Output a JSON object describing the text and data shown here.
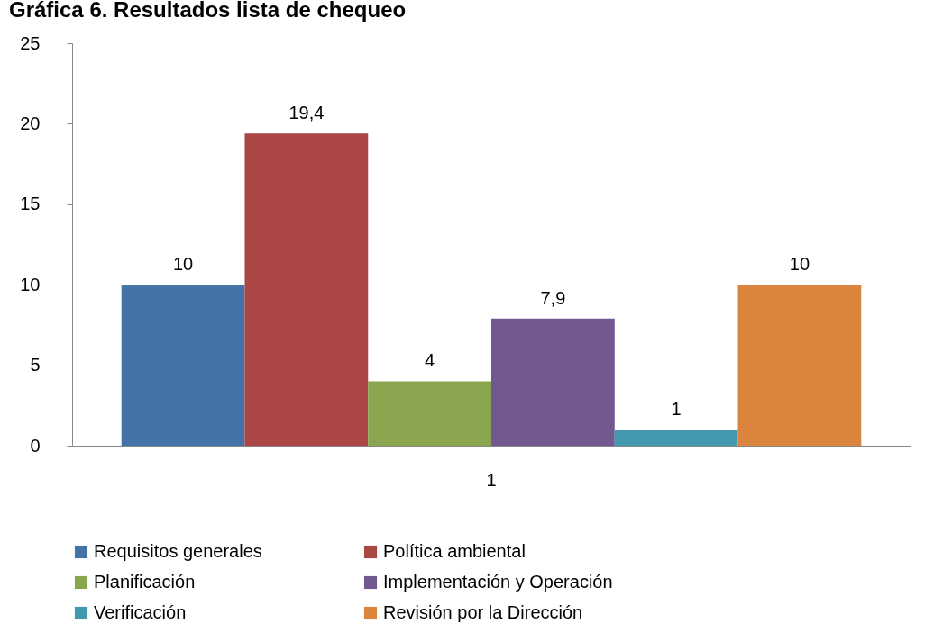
{
  "chart_data": {
    "type": "bar",
    "title": "Gráfica 6. Resultados lista de chequeo",
    "categories": [
      "1"
    ],
    "series": [
      {
        "name": "Requisitos generales",
        "color": "#4572a7",
        "values": [
          10
        ],
        "value_labels": [
          "10"
        ]
      },
      {
        "name": "Política ambiental",
        "color": "#aa4643",
        "values": [
          19.4
        ],
        "value_labels": [
          "19,4"
        ]
      },
      {
        "name": "Planificación",
        "color": "#89a54e",
        "values": [
          4
        ],
        "value_labels": [
          "4"
        ]
      },
      {
        "name": "Implementación y Operación",
        "color": "#71588f",
        "values": [
          7.9
        ],
        "value_labels": [
          "7,9"
        ]
      },
      {
        "name": "Verificación",
        "color": "#4198af",
        "values": [
          1
        ],
        "value_labels": [
          "1"
        ]
      },
      {
        "name": "Revisión por la Dirección",
        "color": "#db843d",
        "values": [
          10
        ],
        "value_labels": [
          "10"
        ]
      }
    ],
    "ylim": [
      0,
      25
    ],
    "yticks": [
      0,
      5,
      10,
      15,
      20,
      25
    ],
    "grid": false,
    "legend": "bottom"
  }
}
